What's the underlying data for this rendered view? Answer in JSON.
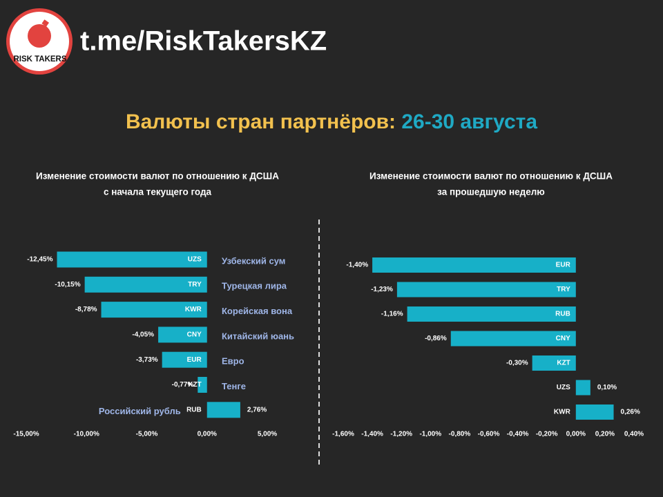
{
  "header": {
    "logo_text": "RISK TAKERS",
    "link": "t.me/RiskTakersKZ",
    "title_main": "Валюты стран партнёров: ",
    "title_dates": "26-30 августа"
  },
  "chart_data": [
    {
      "type": "bar",
      "orientation": "horizontal",
      "title_lines": [
        "Изменение стоимости валют по отношению к ДСША",
        "с начала текущего года"
      ],
      "categories": [
        "UZS",
        "TRY",
        "KWR",
        "CNY",
        "EUR",
        "KZT",
        "RUB"
      ],
      "currency_names": [
        "Узбекский сум",
        "Турецкая лира",
        "Корейская вона",
        "Китайский юань",
        "Евро",
        "Тенге",
        "Российский рубль"
      ],
      "values": [
        -12.45,
        -10.15,
        -8.78,
        -4.05,
        -3.73,
        -0.77,
        2.76
      ],
      "value_labels": [
        "-12,45%",
        "-10,15%",
        "-8,78%",
        "-4,05%",
        "-3,73%",
        "-0,77%",
        "2,76%"
      ],
      "color": "#17b0c8",
      "xlim": [
        -15,
        5
      ],
      "xticks": [
        {
          "value": -15,
          "label": "-15,00%"
        },
        {
          "value": -10,
          "label": "-10,00%"
        },
        {
          "value": -5,
          "label": "-5,00%"
        },
        {
          "value": 0,
          "label": "0,00%"
        },
        {
          "value": 5,
          "label": "5,00%"
        }
      ]
    },
    {
      "type": "bar",
      "orientation": "horizontal",
      "title_lines": [
        "Изменение стоимости валют по отношению к ДСША",
        "за прошедшую неделю"
      ],
      "categories": [
        "EUR",
        "TRY",
        "RUB",
        "CNY",
        "KZT",
        "UZS",
        "KWR"
      ],
      "values": [
        -1.4,
        -1.23,
        -1.16,
        -0.86,
        -0.3,
        0.1,
        0.26
      ],
      "value_labels": [
        "-1,40%",
        "-1,23%",
        "-1,16%",
        "-0,86%",
        "-0,30%",
        "0,10%",
        "0,26%"
      ],
      "color": "#17b0c8",
      "xlim": [
        -1.6,
        0.4
      ],
      "xticks": [
        {
          "value": -1.6,
          "label": "-1,60%"
        },
        {
          "value": -1.4,
          "label": "-1,40%"
        },
        {
          "value": -1.2,
          "label": "-1,20%"
        },
        {
          "value": -1.0,
          "label": "-1,00%"
        },
        {
          "value": -0.8,
          "label": "-0,80%"
        },
        {
          "value": -0.6,
          "label": "-0,60%"
        },
        {
          "value": -0.4,
          "label": "-0,40%"
        },
        {
          "value": -0.2,
          "label": "-0,20%"
        },
        {
          "value": 0,
          "label": "0,00%"
        },
        {
          "value": 0.2,
          "label": "0,20%"
        },
        {
          "value": 0.4,
          "label": "0,40%"
        }
      ]
    }
  ]
}
